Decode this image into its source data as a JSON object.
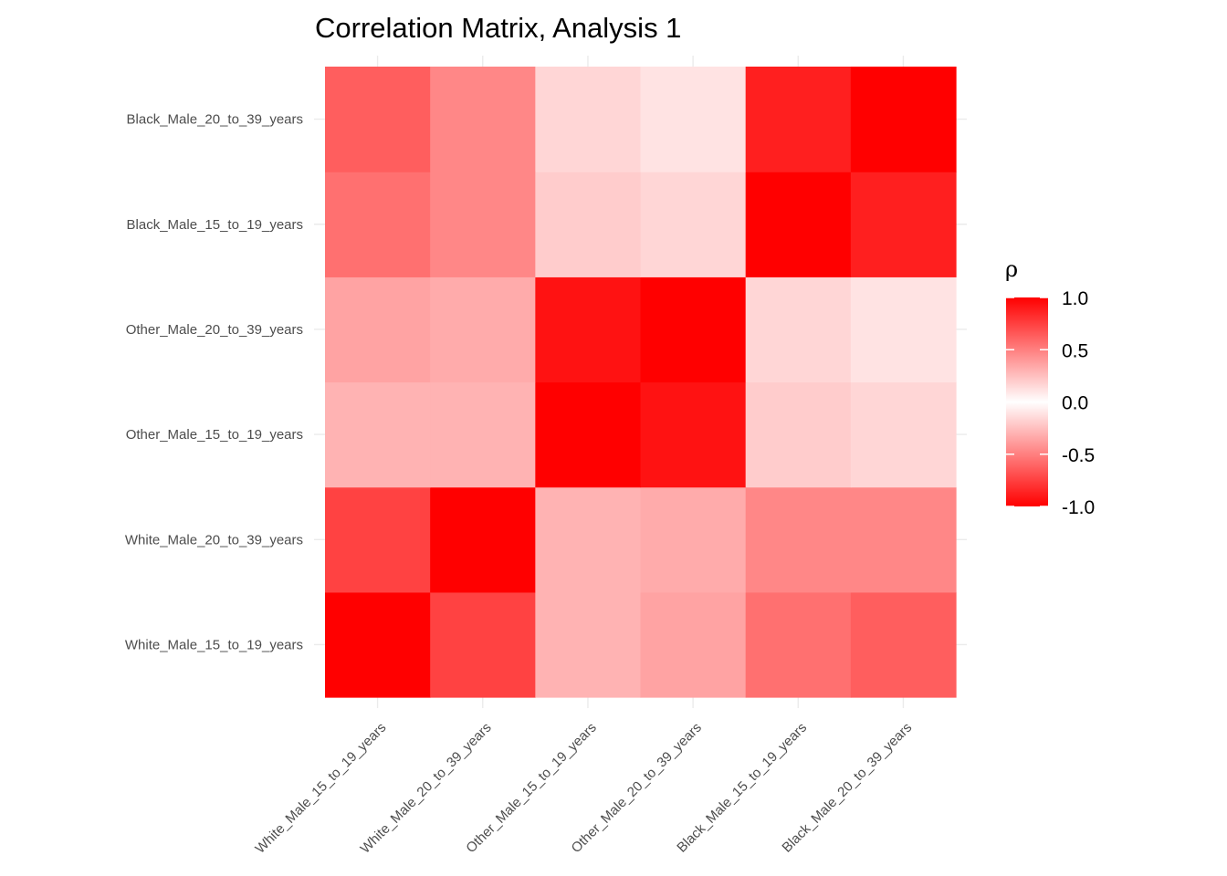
{
  "chart_data": {
    "type": "heatmap",
    "title": "Correlation Matrix, Analysis 1",
    "variables": [
      "White_Male_15_to_19_years",
      "White_Male_20_to_39_years",
      "Other_Male_15_to_19_years",
      "Other_Male_20_to_39_years",
      "Black_Male_15_to_19_years",
      "Black_Male_20_to_39_years"
    ],
    "matrix": [
      [
        1.0,
        0.74,
        0.3,
        0.36,
        0.56,
        0.63
      ],
      [
        0.74,
        1.0,
        0.3,
        0.33,
        0.47,
        0.47
      ],
      [
        0.3,
        0.3,
        1.0,
        0.93,
        0.2,
        0.16
      ],
      [
        0.36,
        0.33,
        0.93,
        1.0,
        0.16,
        0.11
      ],
      [
        0.56,
        0.47,
        0.2,
        0.16,
        1.0,
        0.88
      ],
      [
        0.63,
        0.47,
        0.16,
        0.11,
        0.88,
        1.0
      ]
    ],
    "legend": {
      "title": "ρ",
      "ticks": [
        "1.0",
        "0.5",
        "0.0",
        "-0.5",
        "-1.0"
      ],
      "tick_values": [
        1.0,
        0.5,
        0.0,
        -0.5,
        -1.0
      ],
      "range": [
        -1,
        1
      ],
      "placement": "right"
    },
    "colors": {
      "low": "#ff0000",
      "mid": "#ffffff",
      "high": "#ff0000"
    },
    "grid": true
  }
}
